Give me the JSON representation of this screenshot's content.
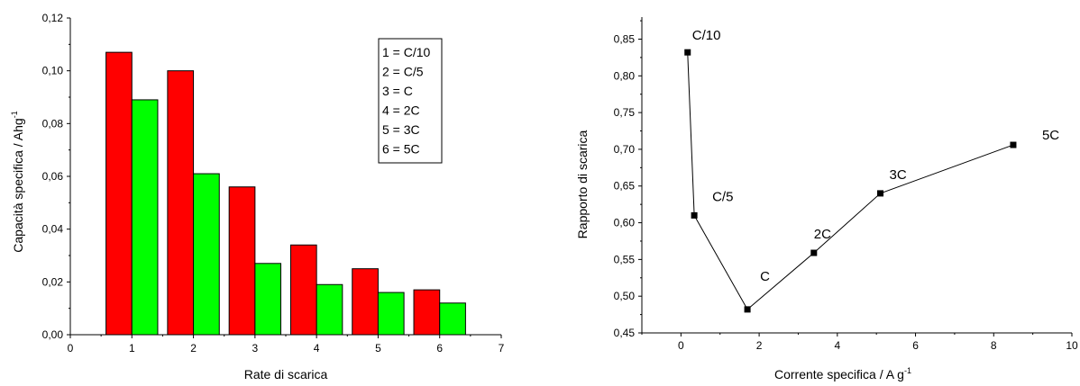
{
  "chart_data": [
    {
      "type": "bar",
      "xlabel": "Rate di scarica",
      "ylabel": "Capacità specifica / Ahg",
      "ylabel_sup": "-1",
      "xlim": [
        0,
        7
      ],
      "ylim": [
        0,
        0.12
      ],
      "x_ticks": [
        0,
        1,
        2,
        3,
        4,
        5,
        6,
        7
      ],
      "x_tick_labels": [
        "0",
        "1",
        "2",
        "3",
        "4",
        "5",
        "6",
        "7"
      ],
      "y_ticks": [
        0,
        0.02,
        0.04,
        0.06,
        0.08,
        0.1,
        0.12
      ],
      "y_tick_labels": [
        "0,00",
        "0,02",
        "0,04",
        "0,06",
        "0,08",
        "0,10",
        "0,12"
      ],
      "categories": [
        1,
        2,
        3,
        4,
        5,
        6
      ],
      "series": [
        {
          "values": [
            0.107,
            0.1,
            0.056,
            0.034,
            0.025,
            0.017
          ],
          "color": "#ff0000"
        },
        {
          "values": [
            0.089,
            0.061,
            0.027,
            0.019,
            0.016,
            0.012
          ],
          "color": "#00ff00"
        }
      ],
      "legend_box": [
        "1 = C/10",
        "2 = C/5",
        "3 = C",
        "4 = 2C",
        "5 = 3C",
        "6 = 5C"
      ],
      "legend_placement": "top-right",
      "grid": false
    },
    {
      "type": "line",
      "xlabel": "Corrente specifica / A g",
      "xlabel_sup": "-1",
      "ylabel": "Rapporto di scarica",
      "xlim": [
        -1,
        10
      ],
      "ylim": [
        0.45,
        0.88
      ],
      "x_ticks": [
        0,
        2,
        4,
        6,
        8,
        10
      ],
      "x_tick_labels": [
        "0",
        "2",
        "4",
        "6",
        "8",
        "10"
      ],
      "y_ticks": [
        0.45,
        0.5,
        0.55,
        0.6,
        0.65,
        0.7,
        0.75,
        0.8,
        0.85
      ],
      "y_tick_labels": [
        "0,45",
        "0,50",
        "0,55",
        "0,60",
        "0,65",
        "0,70",
        "0,75",
        "0,80",
        "0,85"
      ],
      "x": [
        0.17,
        0.34,
        1.7,
        3.4,
        5.1,
        8.5
      ],
      "y": [
        0.832,
        0.61,
        0.482,
        0.559,
        0.64,
        0.706
      ],
      "point_labels": [
        "C/10",
        "C/5",
        "C",
        "2C",
        "3C",
        "5C"
      ],
      "color": "#000000",
      "grid": false
    }
  ]
}
